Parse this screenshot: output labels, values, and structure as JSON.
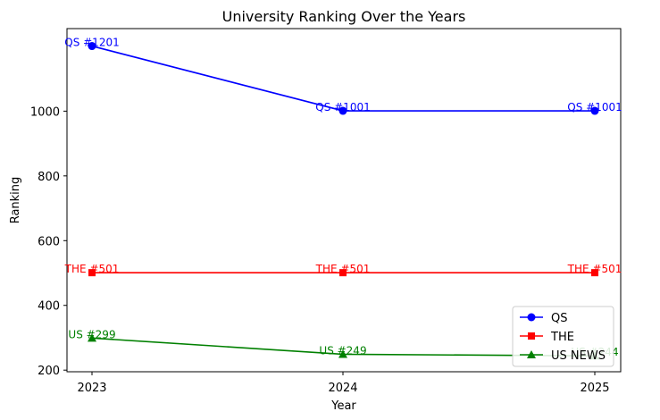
{
  "chart_data": {
    "type": "line",
    "title": "University Ranking Over the Years",
    "xlabel": "Year",
    "ylabel": "Ranking",
    "categories": [
      "2023",
      "2024",
      "2025"
    ],
    "y_inverted": true,
    "ylim": [
      1255,
      195
    ],
    "yticks": [
      200,
      400,
      600,
      800,
      1000
    ],
    "grid": false,
    "legend_position": "lower-right",
    "series": [
      {
        "name": "QS",
        "color": "#0000ff",
        "marker": "circle",
        "values": [
          1201,
          1001,
          1001
        ],
        "labels": [
          "QS #1201",
          "QS #1001",
          "QS #1001"
        ]
      },
      {
        "name": "THE",
        "color": "#ff0000",
        "marker": "square",
        "values": [
          501,
          501,
          501
        ],
        "labels": [
          "THE #501",
          "THE #501",
          "THE #501"
        ]
      },
      {
        "name": "US NEWS",
        "color": "#008000",
        "marker": "triangle",
        "values": [
          299,
          249,
          244
        ],
        "labels": [
          "US #299",
          "US #249",
          "US #244"
        ]
      }
    ]
  }
}
